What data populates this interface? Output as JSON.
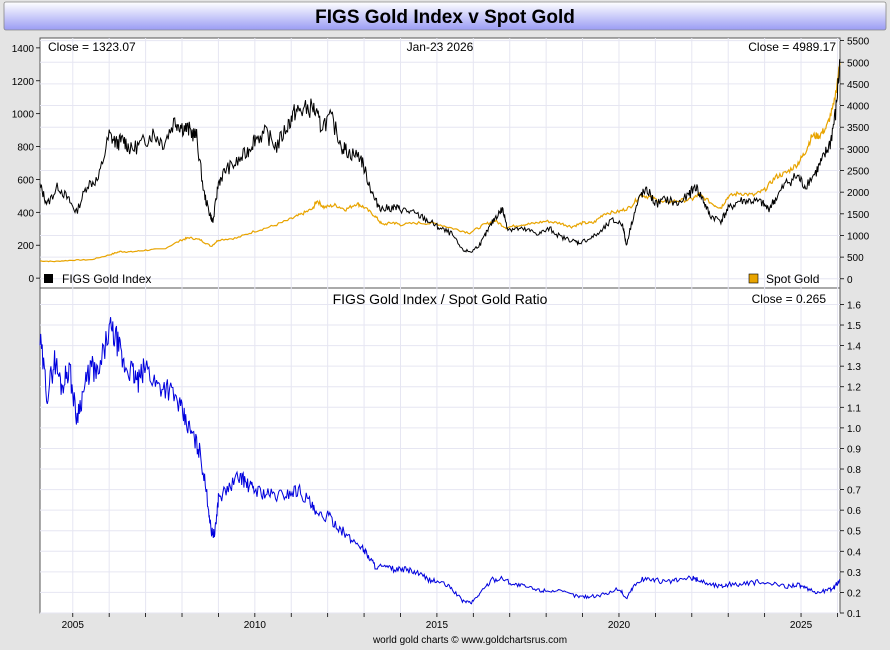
{
  "title": "FIGS Gold Index v Spot Gold",
  "footer": "world gold charts © www.goldchartsrus.com",
  "x_ticks": [
    "2005",
    "2010",
    "2015",
    "2020",
    "2025"
  ],
  "x_range": [
    2004.1,
    2026.07
  ],
  "colors": {
    "title_bg_top": "#ffffff",
    "title_bg_bottom": "#9a9cf4",
    "frame_bg": "#e4e4e4",
    "grid": "#e6e6f2",
    "figs_line": "#000000",
    "gold_line": "#e8a400",
    "ratio_line": "#0000dd"
  },
  "chart_data": [
    {
      "type": "line",
      "title": "",
      "date_label": "Jan-23  2026",
      "left_close_label": "Close = 1323.07",
      "right_close_label": "Close = 4989.17",
      "left_axis": {
        "ticks": [
          "0",
          "200",
          "400",
          "600",
          "800",
          "1000",
          "1200",
          "1400"
        ],
        "ylim": [
          -60,
          1460
        ]
      },
      "right_axis": {
        "ticks": [
          "0",
          "500",
          "1000",
          "1500",
          "2000",
          "2500",
          "3000",
          "3500",
          "4000",
          "4500",
          "5000",
          "5500"
        ],
        "ylim": [
          -213,
          5560
        ]
      },
      "legend": {
        "left": "FIGS Gold Index",
        "right": "Spot Gold"
      },
      "series": [
        {
          "name": "FIGS Gold Index",
          "axis": "left",
          "x": [
            2004.1,
            2004.3,
            2004.6,
            2004.9,
            2005.1,
            2005.4,
            2005.7,
            2006.0,
            2006.2,
            2006.4,
            2006.6,
            2006.9,
            2007.2,
            2007.5,
            2007.8,
            2008.0,
            2008.2,
            2008.4,
            2008.6,
            2008.75,
            2008.85,
            2009.0,
            2009.2,
            2009.5,
            2009.8,
            2010.0,
            2010.3,
            2010.6,
            2010.9,
            2011.1,
            2011.3,
            2011.6,
            2011.8,
            2012.1,
            2012.4,
            2012.6,
            2012.9,
            2013.1,
            2013.3,
            2013.5,
            2013.8,
            2014.0,
            2014.3,
            2014.6,
            2014.9,
            2015.1,
            2015.4,
            2015.7,
            2015.95,
            2016.2,
            2016.4,
            2016.6,
            2016.8,
            2016.95,
            2017.2,
            2017.5,
            2017.8,
            2018.1,
            2018.4,
            2018.7,
            2018.9,
            2019.2,
            2019.5,
            2019.8,
            2020.1,
            2020.2,
            2020.4,
            2020.6,
            2020.8,
            2021.0,
            2021.3,
            2021.6,
            2021.9,
            2022.1,
            2022.3,
            2022.5,
            2022.8,
            2023.0,
            2023.3,
            2023.6,
            2023.9,
            2024.1,
            2024.3,
            2024.6,
            2024.9,
            2025.1,
            2025.4,
            2025.6,
            2025.8,
            2025.95,
            2026.07
          ],
          "values": [
            560,
            450,
            560,
            470,
            400,
            570,
            600,
            870,
            820,
            840,
            780,
            820,
            880,
            820,
            960,
            920,
            900,
            860,
            520,
            400,
            340,
            580,
            660,
            700,
            770,
            850,
            880,
            800,
            930,
            1010,
            1020,
            1040,
            930,
            970,
            800,
            760,
            740,
            600,
            470,
            420,
            430,
            420,
            400,
            370,
            330,
            300,
            270,
            170,
            160,
            210,
            290,
            370,
            420,
            300,
            300,
            290,
            270,
            300,
            250,
            230,
            215,
            240,
            280,
            350,
            330,
            200,
            380,
            510,
            530,
            450,
            480,
            450,
            500,
            560,
            480,
            380,
            350,
            420,
            470,
            470,
            460,
            420,
            480,
            580,
            620,
            560,
            640,
            720,
            820,
            1000,
            1323
          ]
        },
        {
          "name": "Spot Gold",
          "axis": "right",
          "x": [
            2004.1,
            2004.5,
            2005.0,
            2005.5,
            2006.0,
            2006.3,
            2006.6,
            2007.0,
            2007.5,
            2008.0,
            2008.2,
            2008.5,
            2008.8,
            2009.0,
            2009.5,
            2010.0,
            2010.5,
            2011.0,
            2011.3,
            2011.6,
            2011.7,
            2011.9,
            2012.2,
            2012.5,
            2012.8,
            2013.0,
            2013.3,
            2013.5,
            2013.8,
            2014.0,
            2014.5,
            2015.0,
            2015.5,
            2015.9,
            2016.3,
            2016.6,
            2016.9,
            2017.3,
            2017.6,
            2018.0,
            2018.4,
            2018.7,
            2019.0,
            2019.3,
            2019.6,
            2020.0,
            2020.3,
            2020.6,
            2020.9,
            2021.2,
            2021.6,
            2022.0,
            2022.2,
            2022.6,
            2022.8,
            2023.0,
            2023.3,
            2023.7,
            2024.0,
            2024.3,
            2024.6,
            2024.9,
            2025.1,
            2025.3,
            2025.5,
            2025.7,
            2025.9,
            2026.07
          ],
          "values": [
            410,
            400,
            430,
            440,
            550,
            630,
            620,
            660,
            690,
            900,
            950,
            900,
            750,
            900,
            940,
            1100,
            1220,
            1380,
            1500,
            1620,
            1810,
            1650,
            1700,
            1600,
            1740,
            1650,
            1450,
            1250,
            1300,
            1250,
            1290,
            1270,
            1150,
            1060,
            1250,
            1340,
            1180,
            1250,
            1270,
            1330,
            1280,
            1200,
            1290,
            1290,
            1510,
            1550,
            1650,
            1940,
            1870,
            1760,
            1800,
            1830,
            1950,
            1710,
            1640,
            1900,
            1980,
            1930,
            2050,
            2350,
            2450,
            2650,
            2900,
            3300,
            3300,
            3500,
            4000,
            4989
          ]
        }
      ]
    },
    {
      "type": "line",
      "title": "FIGS Gold Index  /  Spot Gold Ratio",
      "right_close_label": "Close = 0.265",
      "right_axis": {
        "ticks": [
          "0.1",
          "0.2",
          "0.3",
          "0.4",
          "0.5",
          "0.6",
          "0.7",
          "0.8",
          "0.9",
          "1.0",
          "1.1",
          "1.2",
          "1.3",
          "1.4",
          "1.5",
          "1.6"
        ],
        "ylim": [
          0.1,
          1.68
        ]
      },
      "series": [
        {
          "name": "FIGS Gold Index / Spot Gold Ratio",
          "axis": "right",
          "x": [
            2004.1,
            2004.3,
            2004.5,
            2004.7,
            2004.9,
            2005.1,
            2005.3,
            2005.5,
            2005.7,
            2006.0,
            2006.2,
            2006.4,
            2006.6,
            2006.8,
            2007.0,
            2007.3,
            2007.6,
            2007.9,
            2008.1,
            2008.3,
            2008.5,
            2008.7,
            2008.8,
            2008.9,
            2009.0,
            2009.3,
            2009.6,
            2009.8,
            2010.0,
            2010.3,
            2010.6,
            2010.9,
            2011.2,
            2011.5,
            2011.7,
            2012.0,
            2012.3,
            2012.6,
            2012.9,
            2013.1,
            2013.3,
            2013.6,
            2013.9,
            2014.2,
            2014.5,
            2014.8,
            2015.1,
            2015.4,
            2015.7,
            2015.95,
            2016.2,
            2016.5,
            2016.8,
            2017.1,
            2017.4,
            2017.8,
            2018.1,
            2018.5,
            2018.9,
            2019.2,
            2019.6,
            2020.0,
            2020.2,
            2020.4,
            2020.7,
            2021.0,
            2021.3,
            2021.6,
            2022.0,
            2022.2,
            2022.5,
            2022.8,
            2023.0,
            2023.4,
            2023.8,
            2024.2,
            2024.6,
            2024.9,
            2025.1,
            2025.4,
            2025.7,
            2025.9,
            2026.07
          ],
          "values": [
            1.42,
            1.16,
            1.33,
            1.2,
            1.3,
            1.05,
            1.18,
            1.3,
            1.25,
            1.48,
            1.43,
            1.3,
            1.28,
            1.22,
            1.3,
            1.21,
            1.2,
            1.12,
            1.03,
            0.96,
            0.88,
            0.65,
            0.5,
            0.48,
            0.66,
            0.71,
            0.77,
            0.72,
            0.7,
            0.68,
            0.67,
            0.68,
            0.7,
            0.64,
            0.57,
            0.57,
            0.52,
            0.46,
            0.43,
            0.38,
            0.33,
            0.32,
            0.31,
            0.31,
            0.29,
            0.26,
            0.25,
            0.22,
            0.16,
            0.15,
            0.2,
            0.26,
            0.27,
            0.24,
            0.23,
            0.21,
            0.21,
            0.2,
            0.18,
            0.18,
            0.19,
            0.22,
            0.17,
            0.23,
            0.27,
            0.26,
            0.25,
            0.26,
            0.27,
            0.26,
            0.24,
            0.23,
            0.24,
            0.24,
            0.25,
            0.24,
            0.23,
            0.24,
            0.22,
            0.2,
            0.21,
            0.22,
            0.265
          ]
        }
      ]
    }
  ]
}
